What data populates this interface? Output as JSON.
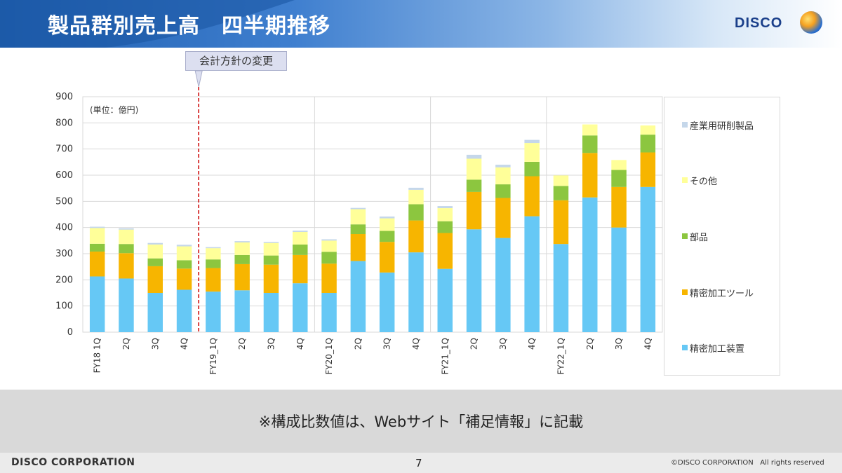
{
  "header": {
    "title": "製品群別売上高　四半期推移",
    "logo_text": "DISCO"
  },
  "callout": {
    "text": "会計方針の変更"
  },
  "footer": {
    "note": "※構成比数値は、Webサイト「補足情報」に記載",
    "corporation": "DISCO CORPORATION",
    "page_number": "7",
    "copyright": "©DISCO CORPORATION   All rights reserved"
  },
  "colors": {
    "装置": "#66c8f5",
    "ツール": "#f7b500",
    "部品": "#8cc63f",
    "その他": "#ffff99",
    "研削": "#c5d7ea",
    "grid": "#d9d9d9",
    "divider": "#cc0000"
  },
  "chart_data": {
    "type": "bar",
    "stacked": true,
    "unit_label": "(単位：億円)",
    "categories": [
      "FY18 1Q",
      "2Q",
      "3Q",
      "4Q",
      "FY19_1Q",
      "2Q",
      "3Q",
      "4Q",
      "FY20_1Q",
      "2Q",
      "3Q",
      "4Q",
      "FY21_1Q",
      "2Q",
      "3Q",
      "4Q",
      "FY22_1Q",
      "2Q",
      "3Q",
      "4Q"
    ],
    "ylim": [
      0,
      900
    ],
    "yticks": [
      0,
      100,
      200,
      300,
      400,
      500,
      600,
      700,
      800,
      900
    ],
    "grid": true,
    "legend_position": "right",
    "series": [
      {
        "name": "精密加工装置",
        "color": "#66c8f5",
        "values": [
          213,
          205,
          150,
          162,
          155,
          160,
          150,
          187,
          150,
          272,
          228,
          305,
          242,
          393,
          360,
          443,
          337,
          515,
          400,
          555
        ]
      },
      {
        "name": "精密加工ツール",
        "color": "#f7b500",
        "values": [
          95,
          97,
          102,
          81,
          90,
          100,
          108,
          108,
          112,
          103,
          117,
          122,
          137,
          143,
          153,
          153,
          167,
          170,
          155,
          132
        ]
      },
      {
        "name": "部品",
        "color": "#8cc63f",
        "values": [
          30,
          35,
          30,
          32,
          33,
          35,
          35,
          40,
          45,
          37,
          42,
          62,
          45,
          47,
          52,
          55,
          55,
          67,
          65,
          68
        ]
      },
      {
        "name": "その他",
        "color": "#ffff99",
        "values": [
          60,
          55,
          53,
          53,
          43,
          48,
          48,
          48,
          43,
          58,
          48,
          55,
          50,
          80,
          65,
          72,
          40,
          42,
          38,
          35
        ]
      },
      {
        "name": "産業用研削製品",
        "color": "#c5d7ea",
        "values": [
          5,
          5,
          6,
          6,
          4,
          5,
          4,
          5,
          5,
          5,
          7,
          8,
          8,
          15,
          10,
          12,
          0,
          0,
          0,
          0
        ]
      }
    ],
    "annotation": {
      "text": "会計方針の変更",
      "between": [
        "4Q",
        "FY19_1Q"
      ]
    }
  }
}
